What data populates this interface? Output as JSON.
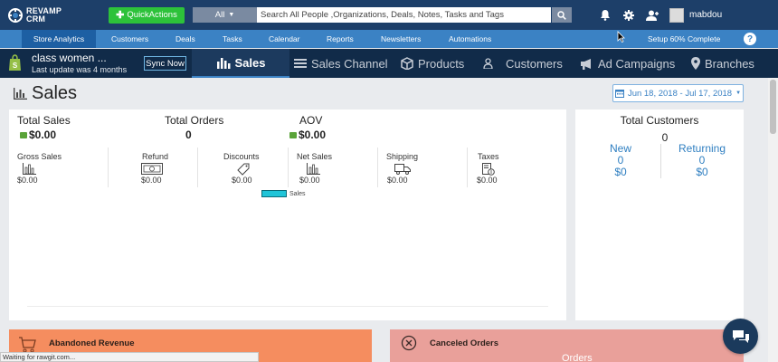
{
  "app": {
    "logo_line1": "REVAMP",
    "logo_line2": "CRM",
    "username": "mabdou"
  },
  "topbar": {
    "quick_actions_label": "QuickActions",
    "search_scope": "All",
    "search_placeholder": "Search All People ,Organizations, Deals, Notes, Tasks and Tags"
  },
  "nav": {
    "items": [
      "Store Analytics",
      "Customers",
      "Deals",
      "Tasks",
      "Calendar",
      "Reports",
      "Newsletters",
      "Automations"
    ],
    "setup": "Setup 60% Complete",
    "help": "?"
  },
  "store": {
    "name": "class women ...",
    "last_update": "Last update was 4 months",
    "sync_label": "Sync Now",
    "tabs": [
      "Sales",
      "Sales Channel",
      "Products",
      "Customers",
      "Ad Campaigns",
      "Branches"
    ]
  },
  "page": {
    "title": "Sales",
    "date_range": "Jun 18, 2018 - Jul 17, 2018"
  },
  "sales": {
    "total_sales_label": "Total Sales",
    "total_sales_value": "$0.00",
    "total_orders_label": "Total Orders",
    "total_orders_value": "0",
    "aov_label": "AOV",
    "aov_value": "$0.00",
    "sub": [
      {
        "label": "Gross Sales",
        "value": "$0.00"
      },
      {
        "label": "Refund",
        "value": "$0.00"
      },
      {
        "label": "Discounts",
        "value": "$0.00"
      },
      {
        "label": "Net Sales",
        "value": "$0.00"
      },
      {
        "label": "Shipping",
        "value": "$0.00"
      },
      {
        "label": "Taxes",
        "value": "$0.00"
      }
    ],
    "legend_label": "Sales",
    "legend_color": "#1fc4d8"
  },
  "customers": {
    "title": "Total Customers",
    "total": "0",
    "new_label": "New",
    "new_count": "0",
    "new_value": "$0",
    "returning_label": "Returning",
    "returning_count": "0",
    "returning_value": "$0"
  },
  "bottom": {
    "abandoned": "Abandoned Revenue",
    "canceled": "Canceled Orders",
    "canceled_partial": "Orders"
  },
  "status_bar": "Waiting for rawgit.com...",
  "colors": {
    "topbar": "#1d3f69",
    "nav": "#3b82c4",
    "storebar": "#112b49",
    "accent_green": "#2dc23a",
    "abandoned": "#f58d5f",
    "canceled": "#e9a09a"
  }
}
